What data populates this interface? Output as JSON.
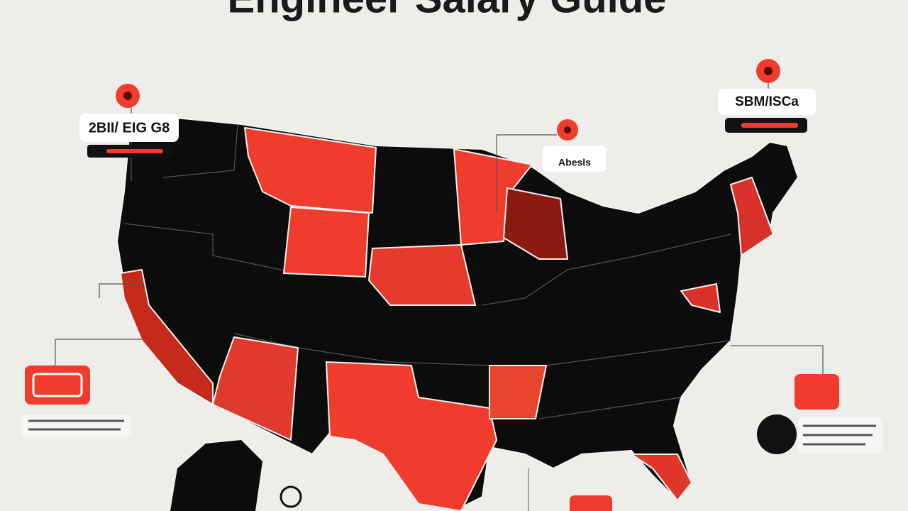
{
  "header": {
    "title": "Engineer Salary Guide"
  },
  "callouts": [
    {
      "label": "2BII/ EIG G8"
    },
    {
      "label": "SBM/ISCa"
    },
    {
      "label": "Abesls"
    }
  ]
}
